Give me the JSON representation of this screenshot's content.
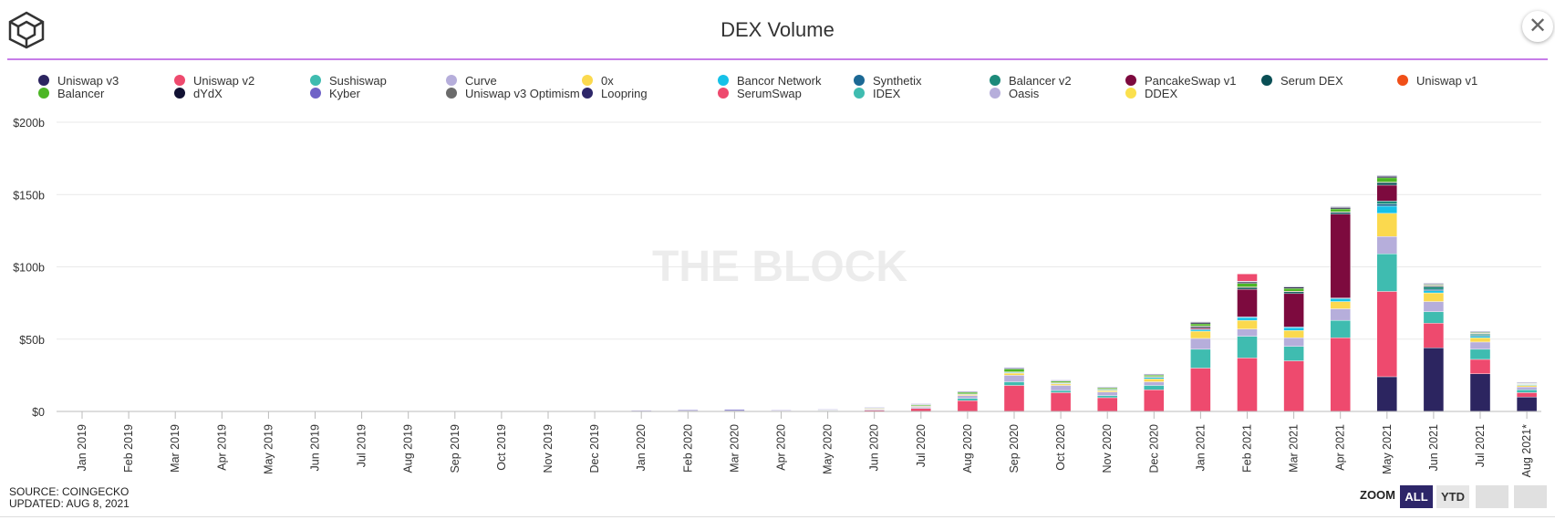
{
  "header": {
    "title": "DEX Volume",
    "close_label": "✕"
  },
  "colors": {
    "Uniswap v3": "#2c2560",
    "Uniswap v2": "#ee4a6e",
    "Sushiswap": "#3fbcb0",
    "Curve": "#b6aedb",
    "0x": "#fbd94e",
    "Bancor Network": "#16c1e8",
    "Synthetix": "#1b6894",
    "Balancer v2": "#1c8a7a",
    "PancakeSwap v1": "#7d0a3e",
    "Serum DEX": "#0a4f55",
    "Uniswap v1": "#f04f18",
    "Balancer": "#4cb625",
    "dYdX": "#121233",
    "Kyber": "#6f62c7",
    "Uniswap v3 Optimism": "#6b6b6b",
    "Loopring": "#2d2669",
    "SerumSwap": "#ee4a6e",
    "IDEX": "#3fbcb0",
    "Oasis": "#b6aedb",
    "DDEX": "#fbe04d"
  },
  "chart_data": {
    "type": "bar",
    "stacked": true,
    "title": "DEX Volume",
    "watermark": "THE BLOCK",
    "ylim": [
      0,
      200
    ],
    "yticks": [
      0,
      50,
      100,
      150,
      200
    ],
    "ytick_labels": [
      "$0",
      "$50b",
      "$100b",
      "$150b",
      "$200b"
    ],
    "unit": "billion USD",
    "categories": [
      "Jan 2019",
      "Feb 2019",
      "Mar 2019",
      "Apr 2019",
      "May 2019",
      "Jun 2019",
      "Jul 2019",
      "Aug 2019",
      "Sep 2019",
      "Oct 2019",
      "Nov 2019",
      "Dec 2019",
      "Jan 2020",
      "Feb 2020",
      "Mar 2020",
      "Apr 2020",
      "May 2020",
      "Jun 2020",
      "Jul 2020",
      "Aug 2020",
      "Sep 2020",
      "Oct 2020",
      "Nov 2020",
      "Dec 2020",
      "Jan 2021",
      "Feb 2021",
      "Mar 2021",
      "Apr 2021",
      "May 2021",
      "Jun 2021",
      "Jul 2021",
      "Aug 2021*"
    ],
    "legend": [
      "Uniswap v3",
      "Uniswap v2",
      "Sushiswap",
      "Curve",
      "0x",
      "Bancor Network",
      "Synthetix",
      "Balancer v2",
      "PancakeSwap v1",
      "Serum DEX",
      "Uniswap v1",
      "Balancer",
      "dYdX",
      "Kyber",
      "Uniswap v3 Optimism",
      "Loopring",
      "SerumSwap",
      "IDEX",
      "Oasis",
      "DDEX"
    ],
    "series": [
      {
        "name": "Uniswap v3",
        "values": [
          0,
          0,
          0,
          0,
          0,
          0,
          0,
          0,
          0,
          0,
          0,
          0,
          0,
          0,
          0,
          0,
          0,
          0,
          0,
          0,
          0,
          0,
          0,
          0,
          0,
          0,
          0,
          0,
          24,
          44,
          26,
          10
        ]
      },
      {
        "name": "Uniswap v2",
        "values": [
          0,
          0,
          0,
          0,
          0,
          0,
          0,
          0,
          0,
          0,
          0,
          0,
          0,
          0,
          0,
          0,
          0.3,
          0.8,
          2.0,
          7.5,
          18.0,
          13.0,
          9.5,
          15.0,
          30.0,
          37.0,
          35.0,
          51.0,
          59.0,
          17.0,
          10.0,
          3.0
        ]
      },
      {
        "name": "Sushiswap",
        "values": [
          0,
          0,
          0,
          0,
          0,
          0,
          0,
          0,
          0,
          0,
          0,
          0,
          0,
          0,
          0,
          0,
          0,
          0,
          0,
          1.5,
          2.5,
          1.5,
          1.5,
          3.0,
          13.0,
          15.0,
          10.0,
          12.0,
          26.0,
          8.0,
          7.0,
          2.0
        ]
      },
      {
        "name": "Curve",
        "values": [
          0,
          0,
          0,
          0,
          0,
          0,
          0,
          0,
          0,
          0,
          0,
          0,
          0,
          0,
          0,
          0,
          0.3,
          0.7,
          1.0,
          2.0,
          4.5,
          3.5,
          2.5,
          2.5,
          7.5,
          5.0,
          6.0,
          8.0,
          12.0,
          7.0,
          5.0,
          2.0
        ]
      },
      {
        "name": "0x",
        "values": [
          0,
          0,
          0,
          0,
          0,
          0,
          0,
          0,
          0,
          0,
          0,
          0,
          0,
          0,
          0,
          0,
          0,
          0.2,
          0.3,
          0.5,
          1.5,
          1.0,
          1.0,
          2.0,
          5.0,
          6.0,
          5.0,
          5.0,
          16.0,
          6.0,
          3.0,
          1.0
        ]
      },
      {
        "name": "Bancor Network",
        "values": [
          0,
          0,
          0,
          0,
          0,
          0,
          0,
          0,
          0,
          0,
          0,
          0,
          0.2,
          0.3,
          0.3,
          0.3,
          0.3,
          0.3,
          0.5,
          0.5,
          0.5,
          0.5,
          0.5,
          1.0,
          1.0,
          2.0,
          2.0,
          2.0,
          5.0,
          1.5,
          1.0,
          0.5
        ]
      },
      {
        "name": "Synthetix",
        "values": [
          0,
          0,
          0,
          0,
          0,
          0,
          0,
          0,
          0,
          0,
          0,
          0,
          0,
          0,
          0,
          0,
          0,
          0,
          0,
          0,
          0,
          0,
          0,
          0,
          0.5,
          0.5,
          0.5,
          0.5,
          1.5,
          1.0,
          0.5,
          0.3
        ]
      },
      {
        "name": "Balancer v2",
        "values": [
          0,
          0,
          0,
          0,
          0,
          0,
          0,
          0,
          0,
          0,
          0,
          0,
          0,
          0,
          0,
          0,
          0,
          0,
          0,
          0,
          0,
          0,
          0,
          0,
          0,
          0,
          0,
          0,
          2.0,
          1.5,
          1.0,
          0.5
        ]
      },
      {
        "name": "PancakeSwap v1",
        "values": [
          0,
          0,
          0,
          0,
          0,
          0,
          0,
          0,
          0,
          0,
          0,
          0,
          0,
          0,
          0,
          0,
          0,
          0,
          0,
          0,
          0,
          0,
          0,
          0,
          1.0,
          19.0,
          23.0,
          58.0,
          11.0,
          0,
          0,
          0
        ]
      },
      {
        "name": "Serum DEX",
        "values": [
          0,
          0,
          0,
          0,
          0,
          0,
          0,
          0,
          0,
          0,
          0,
          0,
          0,
          0,
          0,
          0,
          0,
          0,
          0,
          0,
          0.3,
          0.3,
          0.3,
          0.5,
          1.0,
          1.5,
          1.5,
          1.5,
          2.0,
          1.0,
          0.5,
          0.2
        ]
      },
      {
        "name": "Uniswap v1",
        "values": [
          0,
          0,
          0,
          0,
          0,
          0,
          0,
          0,
          0,
          0,
          0.1,
          0.1,
          0.1,
          0.2,
          0.2,
          0.1,
          0.1,
          0.1,
          0.1,
          0.1,
          0.1,
          0.1,
          0.1,
          0.1,
          0.1,
          0.1,
          0.1,
          0.1,
          0.1,
          0.1,
          0.1,
          0.1
        ]
      },
      {
        "name": "Balancer",
        "values": [
          0,
          0,
          0,
          0,
          0,
          0,
          0,
          0,
          0,
          0,
          0,
          0,
          0,
          0,
          0,
          0,
          0.1,
          0.5,
          0.8,
          1.2,
          2.0,
          1.0,
          0.8,
          1.0,
          1.5,
          2.5,
          2.0,
          2.0,
          3.0,
          0.5,
          0.5,
          0.2
        ]
      },
      {
        "name": "dYdX",
        "values": [
          0,
          0,
          0,
          0,
          0,
          0,
          0,
          0,
          0,
          0,
          0,
          0,
          0.1,
          0.1,
          0.1,
          0.1,
          0.1,
          0.1,
          0.2,
          0.3,
          0.5,
          0.5,
          0.5,
          0.5,
          1.0,
          1.0,
          1.0,
          1.0,
          1.0,
          0.5,
          0.5,
          0.2
        ]
      },
      {
        "name": "Kyber",
        "values": [
          0,
          0,
          0,
          0,
          0,
          0,
          0,
          0,
          0,
          0,
          0.05,
          0.2,
          0.3,
          0.5,
          0.7,
          0.4,
          0.3,
          0.3,
          0.4,
          0.4,
          0.5,
          0.3,
          0.3,
          0.3,
          0.3,
          0.3,
          0.3,
          0.3,
          0.3,
          0.3,
          0.2,
          0.1
        ]
      },
      {
        "name": "Uniswap v3 Optimism",
        "values": [
          0,
          0,
          0,
          0,
          0,
          0,
          0,
          0,
          0,
          0,
          0,
          0,
          0,
          0,
          0,
          0,
          0,
          0,
          0,
          0,
          0,
          0,
          0,
          0,
          0,
          0,
          0,
          0,
          0,
          0,
          0,
          0
        ]
      },
      {
        "name": "Loopring",
        "values": [
          0,
          0,
          0,
          0,
          0,
          0,
          0,
          0,
          0,
          0,
          0,
          0,
          0,
          0,
          0,
          0,
          0,
          0,
          0,
          0,
          0,
          0,
          0,
          0,
          0.1,
          0.2,
          0.2,
          0.2,
          0.3,
          0.2,
          0.2,
          0.1
        ]
      },
      {
        "name": "SerumSwap",
        "values": [
          0,
          0,
          0,
          0,
          0,
          0,
          0,
          0,
          0,
          0,
          0,
          0,
          0,
          0,
          0,
          0,
          0,
          0,
          0,
          0,
          0,
          0,
          0,
          0,
          0,
          5.0,
          0,
          0,
          0,
          0,
          0,
          0
        ]
      },
      {
        "name": "IDEX",
        "values": [
          0,
          0,
          0,
          0,
          0,
          0,
          0,
          0,
          0,
          0,
          0,
          0,
          0,
          0,
          0,
          0,
          0,
          0,
          0,
          0,
          0,
          0,
          0,
          0,
          0,
          0,
          0,
          0,
          0,
          0,
          0,
          0
        ]
      },
      {
        "name": "Oasis",
        "values": [
          0,
          0,
          0,
          0,
          0,
          0,
          0,
          0,
          0,
          0,
          0,
          0,
          0,
          0,
          0,
          0,
          0,
          0,
          0,
          0,
          0,
          0,
          0,
          0,
          0,
          0,
          0,
          0,
          0,
          0,
          0,
          0
        ]
      },
      {
        "name": "DDEX",
        "values": [
          0,
          0,
          0,
          0,
          0,
          0,
          0,
          0,
          0,
          0,
          0,
          0,
          0,
          0,
          0,
          0,
          0,
          0,
          0,
          0,
          0,
          0,
          0,
          0,
          0,
          0,
          0,
          0,
          0,
          0,
          0,
          0
        ]
      }
    ]
  },
  "footer": {
    "source": "SOURCE: COINGECKO",
    "updated": "UPDATED: AUG 8, 2021"
  },
  "zoom": {
    "label": "ZOOM",
    "all": "ALL",
    "ytd": "YTD"
  }
}
